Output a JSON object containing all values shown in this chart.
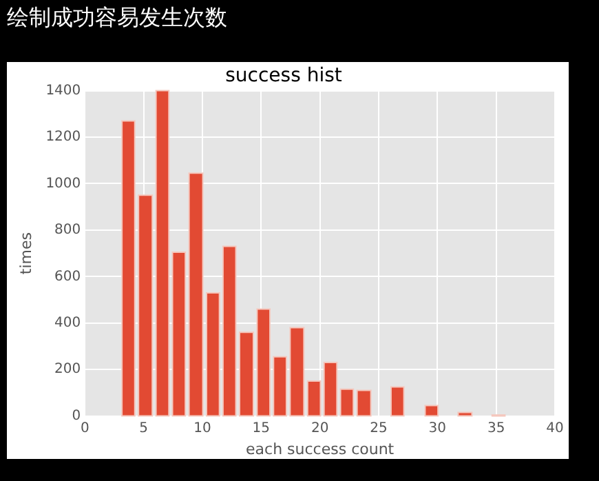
{
  "chart_data": {
    "type": "histogram",
    "title": "success hist",
    "xlabel": "each success count",
    "ylabel": "times",
    "annotations": [
      "绘制成功容易发生次数"
    ],
    "bins": [
      3.0,
      4.4,
      5.9,
      7.3,
      8.7,
      10.2,
      11.6,
      13.0,
      14.5,
      15.9,
      17.3,
      18.8,
      20.2,
      21.6,
      23.0,
      24.5,
      25.9,
      27.3,
      28.8,
      30.2,
      31.6,
      33.1,
      34.5,
      35.9
    ],
    "values": [
      1270,
      950,
      1400,
      705,
      1045,
      530,
      730,
      360,
      460,
      255,
      380,
      150,
      230,
      115,
      110,
      0,
      125,
      0,
      45,
      0,
      15,
      0,
      4
    ],
    "color": "#e24a33",
    "xlim": [
      0,
      40
    ],
    "xticks": [
      0,
      5,
      10,
      15,
      20,
      25,
      30,
      35,
      40
    ],
    "ylim": [
      0,
      1400
    ],
    "yticks": [
      0,
      200,
      400,
      600,
      800,
      1000,
      1200,
      1400
    ],
    "grid": true
  }
}
